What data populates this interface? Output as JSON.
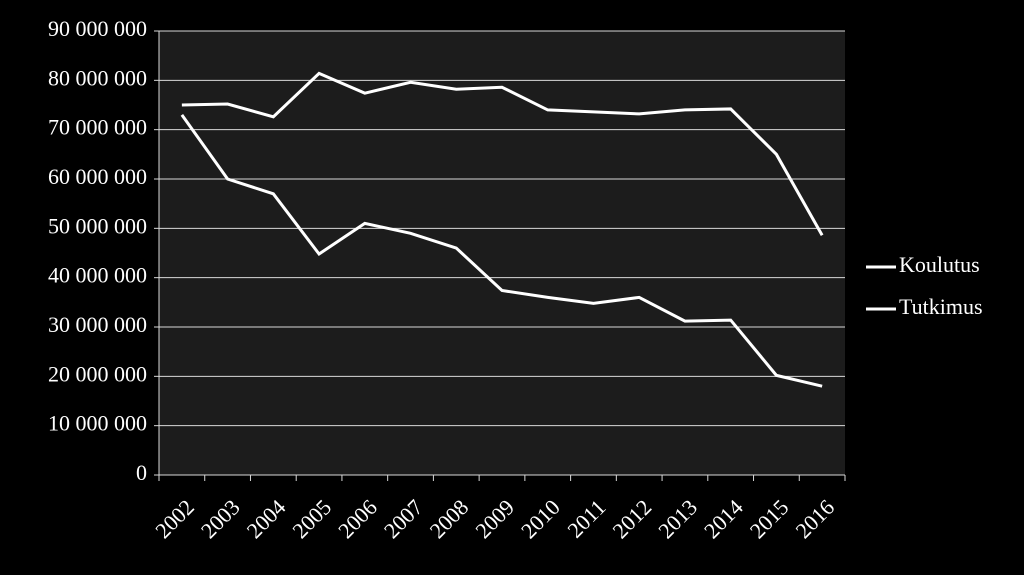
{
  "chart_data": {
    "type": "line",
    "categories": [
      "2002",
      "2003",
      "2004",
      "2005",
      "2006",
      "2007",
      "2008",
      "2009",
      "2010",
      "2011",
      "2012",
      "2013",
      "2014",
      "2015",
      "2016"
    ],
    "series": [
      {
        "name": "Koulutus",
        "color": "#ffffff",
        "values": [
          75000000,
          75200000,
          72600000,
          81400000,
          77400000,
          79600000,
          78200000,
          78600000,
          74000000,
          73600000,
          73200000,
          74000000,
          74200000,
          65000000,
          48600000
        ]
      },
      {
        "name": "Tutkimus",
        "color": "#ffffff",
        "values": [
          73000000,
          60000000,
          57000000,
          44800000,
          51000000,
          49000000,
          46000000,
          37400000,
          36000000,
          34800000,
          36000000,
          31200000,
          31400000,
          20200000,
          18000000
        ]
      }
    ],
    "ylim": [
      0,
      90000000
    ],
    "yticks": [
      0,
      {
        "value": 10000000,
        "label": "10 000 000"
      },
      {
        "value": 20000000,
        "label": "20 000 000"
      },
      {
        "value": 30000000,
        "label": "30 000 000"
      },
      {
        "value": 40000000,
        "label": "40 000 000"
      },
      {
        "value": 50000000,
        "label": "50 000 000"
      },
      {
        "value": 60000000,
        "label": "60 000 000"
      },
      {
        "value": 70000000,
        "label": "70 000 000"
      },
      {
        "value": 80000000,
        "label": "80 000 000"
      },
      {
        "value": 90000000,
        "label": "90 000 000"
      }
    ],
    "grid": true,
    "legend": "right"
  }
}
